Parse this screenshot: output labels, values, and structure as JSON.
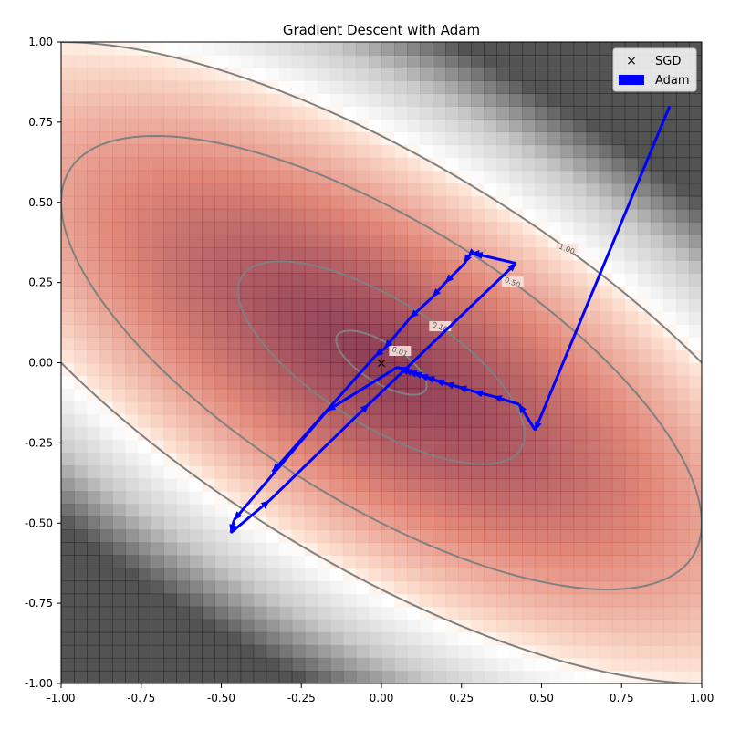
{
  "chart_data": {
    "type": "line",
    "title": "Gradient Descent with Adam",
    "xlabel": "",
    "ylabel": "",
    "xlim": [
      -1.0,
      1.0
    ],
    "ylim": [
      -1.0,
      1.0
    ],
    "x_ticks": [
      "-1.00",
      "-0.75",
      "-0.50",
      "-0.25",
      "0.00",
      "0.25",
      "0.50",
      "0.75",
      "1.00"
    ],
    "y_ticks": [
      "1.00",
      "0.75",
      "0.50",
      "0.25",
      "0.00",
      "-0.25",
      "-0.50",
      "-0.75",
      "-1.00"
    ],
    "grid": false,
    "legend_position": "top-right",
    "legend": [
      {
        "label": "SGD",
        "marker": "x",
        "color": "#000000"
      },
      {
        "label": "Adam",
        "marker": "patch",
        "color": "#0000ff"
      }
    ],
    "background": {
      "type": "heatmap",
      "function": "x^2 + 2y^2 + 2xy",
      "colormap": "RdGy_r"
    },
    "contours": [
      {
        "level": "0.01",
        "label": "0.01"
      },
      {
        "level": "0.10",
        "label": "0.10"
      },
      {
        "level": "0.50",
        "label": "0.50"
      },
      {
        "level": "1.00",
        "label": "1.00"
      }
    ],
    "sgd": {
      "name": "SGD",
      "points": [
        [
          0.0,
          0.0
        ]
      ]
    },
    "adam": {
      "name": "Adam",
      "color": "#0000ff",
      "points": [
        [
          0.9,
          0.8
        ],
        [
          0.48,
          -0.21
        ],
        [
          0.43,
          -0.13
        ],
        [
          0.35,
          -0.105
        ],
        [
          0.29,
          -0.09
        ],
        [
          0.24,
          -0.075
        ],
        [
          0.2,
          -0.065
        ],
        [
          0.17,
          -0.055
        ],
        [
          0.14,
          -0.045
        ],
        [
          0.12,
          -0.038
        ],
        [
          0.1,
          -0.032
        ],
        [
          0.085,
          -0.027
        ],
        [
          0.07,
          -0.022
        ],
        [
          0.06,
          -0.018
        ],
        [
          0.05,
          -0.014
        ],
        [
          -0.17,
          -0.15
        ],
        [
          -0.46,
          -0.49
        ],
        [
          -0.47,
          -0.53
        ],
        [
          -0.35,
          -0.43
        ],
        [
          -0.04,
          -0.13
        ],
        [
          0.42,
          0.31
        ],
        [
          0.29,
          0.34
        ],
        [
          0.28,
          0.34
        ],
        [
          0.27,
          0.33
        ],
        [
          0.26,
          0.31
        ],
        [
          0.2,
          0.25
        ],
        [
          0.16,
          0.205
        ],
        [
          0.09,
          0.14
        ],
        [
          0.01,
          0.045
        ],
        [
          -0.02,
          0.02
        ],
        [
          -0.34,
          -0.34
        ]
      ]
    }
  }
}
